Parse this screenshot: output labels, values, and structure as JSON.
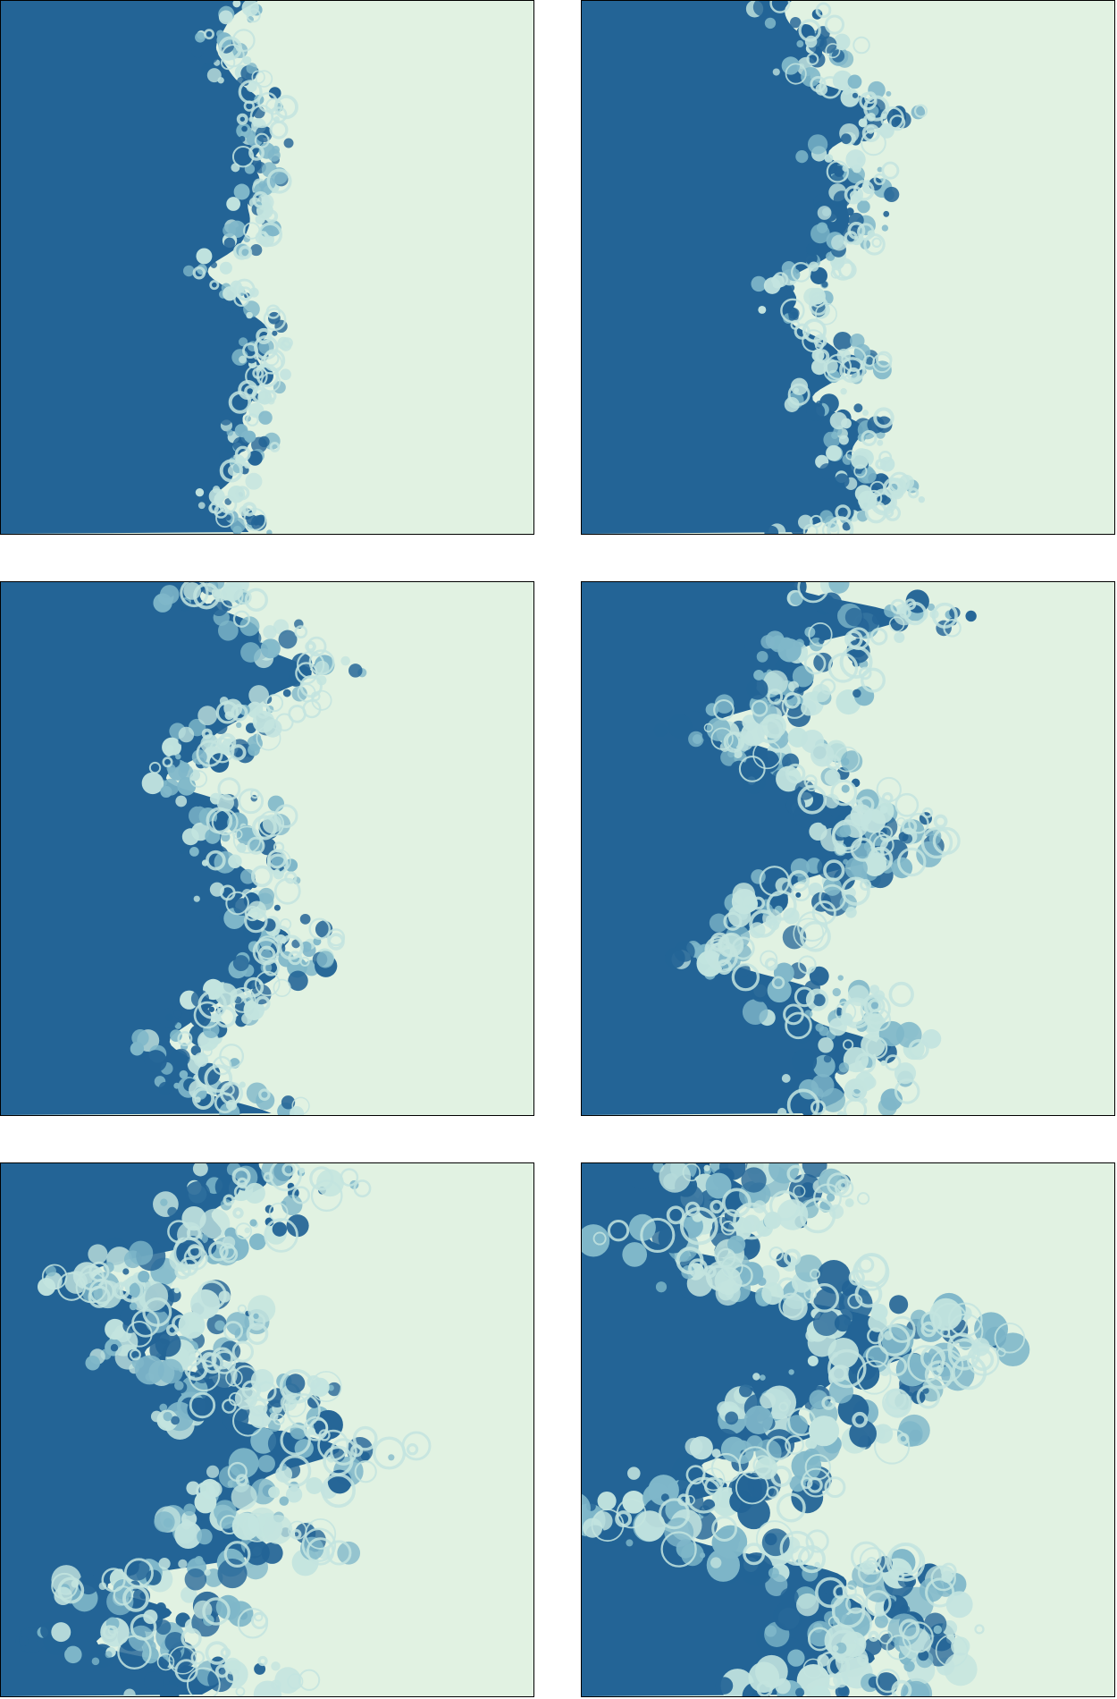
{
  "figure": {
    "panel_count": 6,
    "colors": {
      "dense_fluid": "#236496",
      "light_fluid": "#e1f2e2",
      "mixing_mid": "#7fb7c9",
      "mixing_pale": "#c3e4df",
      "border": "#000000"
    },
    "panels": [
      {
        "id": "panel-1",
        "interface_position": 0.46,
        "mixing_width": 0.08
      },
      {
        "id": "panel-2",
        "interface_position": 0.47,
        "mixing_width": 0.12
      },
      {
        "id": "panel-3",
        "interface_position": 0.44,
        "mixing_width": 0.16
      },
      {
        "id": "panel-4",
        "interface_position": 0.42,
        "mixing_width": 0.22
      },
      {
        "id": "panel-5",
        "interface_position": 0.4,
        "mixing_width": 0.28
      },
      {
        "id": "panel-6",
        "interface_position": 0.38,
        "mixing_width": 0.34
      }
    ]
  }
}
